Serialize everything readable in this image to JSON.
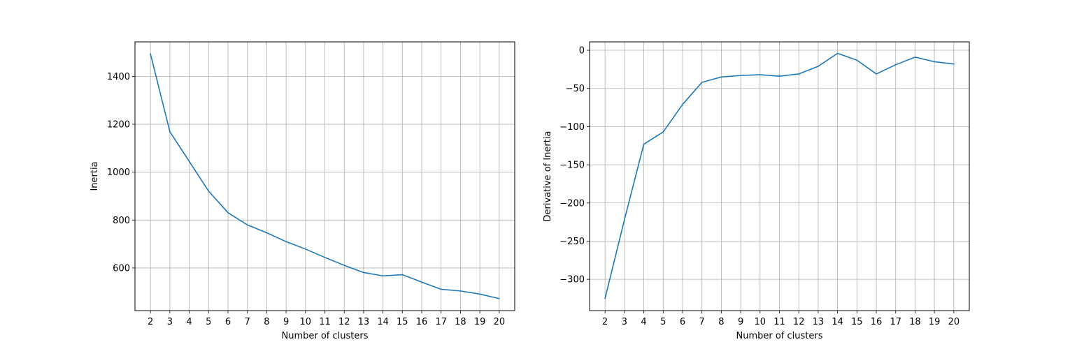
{
  "chart_data": [
    {
      "type": "line",
      "title": "",
      "xlabel": "Number of clusters",
      "ylabel": "Inertia",
      "grid": true,
      "line_color": "#1f77b4",
      "x": [
        2,
        3,
        4,
        5,
        6,
        7,
        8,
        9,
        10,
        11,
        12,
        13,
        14,
        15,
        16,
        17,
        18,
        19,
        20
      ],
      "series": [
        {
          "values": [
            1494,
            1169,
            1045,
            921,
            831,
            780,
            747,
            710,
            679,
            644,
            611,
            581,
            567,
            572,
            541,
            511,
            504,
            491,
            472
          ]
        }
      ],
      "xlim": [
        1.2,
        20.8
      ],
      "ylim": [
        422,
        1544
      ],
      "xticks": [
        2,
        3,
        4,
        5,
        6,
        7,
        8,
        9,
        10,
        11,
        12,
        13,
        14,
        15,
        16,
        17,
        18,
        19,
        20
      ],
      "yticks": [
        600,
        800,
        1000,
        1200,
        1400
      ],
      "ytick_labels": [
        "600",
        "800",
        "1000",
        "1200",
        "1400"
      ]
    },
    {
      "type": "line",
      "title": "",
      "xlabel": "Number of clusters",
      "ylabel": "Derivative of Inertia",
      "grid": true,
      "line_color": "#1f77b4",
      "x": [
        2,
        3,
        4,
        5,
        6,
        7,
        8,
        9,
        10,
        11,
        12,
        13,
        14,
        15,
        16,
        17,
        18,
        19,
        20
      ],
      "series": [
        {
          "values": [
            -325,
            -222,
            -123,
            -107,
            -71,
            -42,
            -35,
            -33,
            -32,
            -34,
            -31,
            -21,
            -4,
            -13,
            -31,
            -19,
            -9,
            -15,
            -18
          ]
        }
      ],
      "xlim": [
        1.2,
        20.8
      ],
      "ylim": [
        -341,
        11
      ],
      "xticks": [
        2,
        3,
        4,
        5,
        6,
        7,
        8,
        9,
        10,
        11,
        12,
        13,
        14,
        15,
        16,
        17,
        18,
        19,
        20
      ],
      "yticks": [
        -300,
        -250,
        -200,
        -150,
        -100,
        -50,
        0
      ],
      "ytick_labels": [
        "−300",
        "−250",
        "−200",
        "−150",
        "−100",
        "−50",
        "0"
      ]
    }
  ]
}
